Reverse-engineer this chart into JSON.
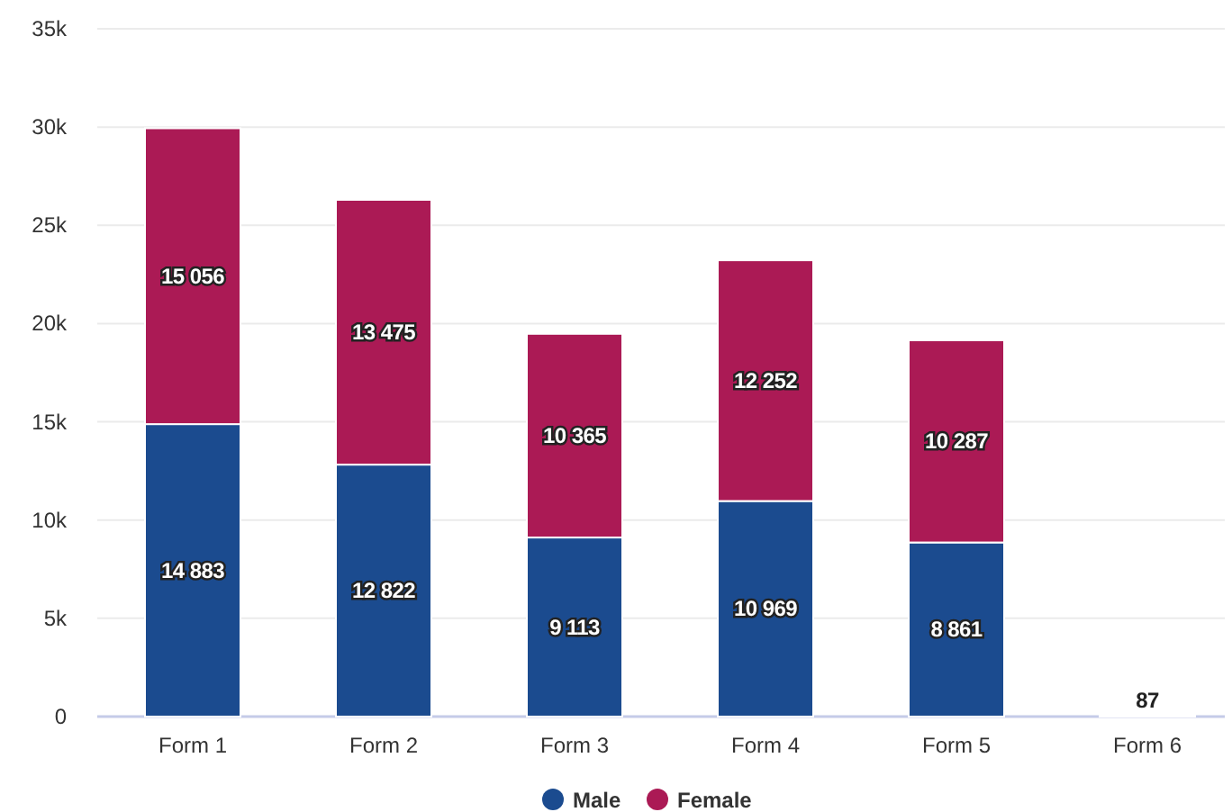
{
  "chart_data": {
    "type": "bar",
    "stacked": true,
    "categories": [
      "Form 1",
      "Form 2",
      "Form 3",
      "Form 4",
      "Form 5",
      "Form 6"
    ],
    "series": [
      {
        "name": "Male",
        "color": "#1b4b8f",
        "values": [
          14883,
          12822,
          9113,
          10969,
          8861,
          null
        ],
        "value_labels": [
          "14 883",
          "12 822",
          "9 113",
          "10 969",
          "8 861",
          null
        ]
      },
      {
        "name": "Female",
        "color": "#ab1a55",
        "values": [
          15056,
          13475,
          10365,
          12252,
          10287,
          87
        ],
        "value_labels": [
          "15 056",
          "13 475",
          "10 365",
          "12 252",
          "10 287",
          "87"
        ]
      }
    ],
    "ylim": [
      0,
      35000
    ],
    "yticks": [
      {
        "value": 0,
        "label": "0"
      },
      {
        "value": 5000,
        "label": "5k"
      },
      {
        "value": 10000,
        "label": "10k"
      },
      {
        "value": 15000,
        "label": "15k"
      },
      {
        "value": 20000,
        "label": "20k"
      },
      {
        "value": 25000,
        "label": "25k"
      },
      {
        "value": 30000,
        "label": "30k"
      },
      {
        "value": 35000,
        "label": "35k"
      }
    ],
    "grid": "y",
    "legend": "bottom"
  }
}
